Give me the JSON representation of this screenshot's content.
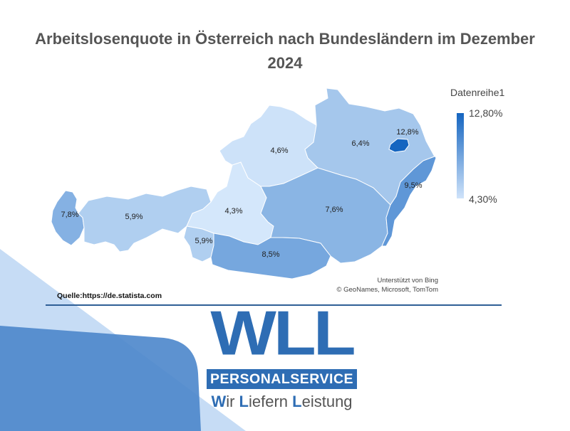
{
  "chart_data": {
    "type": "choropleth map",
    "title": "Arbeitslosenquote in Österreich nach Bundesländern im Dezember 2024",
    "legend": {
      "title": "Datenreihe1",
      "max_label": "12,80%",
      "min_label": "4,30%",
      "min": 4.3,
      "max": 12.8,
      "min_color": "#d4e7fb",
      "max_color": "#1565c0"
    },
    "regions": [
      {
        "label": "7,8%",
        "value": 7.8
      },
      {
        "label": "5,9%",
        "value": 5.9
      },
      {
        "label": "4,3%",
        "value": 4.3
      },
      {
        "label": "5,9%",
        "value": 5.9
      },
      {
        "label": "4,6%",
        "value": 4.6
      },
      {
        "label": "6,4%",
        "value": 6.4
      },
      {
        "label": "12,8%",
        "value": 12.8
      },
      {
        "label": "7,6%",
        "value": 7.6
      },
      {
        "label": "8,5%",
        "value": 8.5
      },
      {
        "label": "9,5%",
        "value": 9.5
      }
    ]
  },
  "credits": {
    "line1": "Unterstützt von Bing",
    "line2": "© GeoNames, Microsoft, TomTom"
  },
  "source": "Quelle:https://de.statista.com",
  "logo": {
    "main": "WLL",
    "box": "PERSONALSERVICE",
    "tagline": {
      "w": "W",
      "w_rest": "ir ",
      "l": "L",
      "l_rest": "iefern ",
      "l2": "L",
      "l2_rest": "eistung"
    }
  },
  "colors": {
    "accent": "#2e6db4",
    "rule": "#2e5f96"
  }
}
